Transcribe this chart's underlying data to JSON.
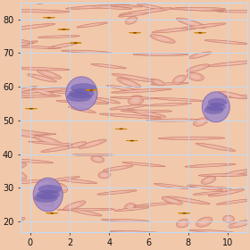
{
  "xlim": [
    -0.5,
    11.0
  ],
  "ylim": [
    17,
    85
  ],
  "xticks": [
    0,
    2,
    4,
    6,
    8,
    10
  ],
  "yticks": [
    20,
    30,
    40,
    50,
    60,
    70,
    80
  ],
  "grid_color": "#bbddff",
  "grid_alpha": 0.85,
  "bg_color": "#f2c8aa",
  "rbc_fill": "#e8a898",
  "rbc_edge": "#c07060",
  "rbc_center": "#f2c8b8",
  "wbc_fill": "#9988cc",
  "wbc_edge": "#7755aa",
  "wbc_dark": "#6655aa",
  "sunflower_points": [
    [
      0.95,
      80.5
    ],
    [
      1.7,
      77.0
    ],
    [
      2.3,
      73.0
    ],
    [
      0.05,
      53.5
    ],
    [
      3.1,
      59.0
    ],
    [
      5.3,
      76.0
    ],
    [
      8.6,
      76.0
    ],
    [
      4.6,
      47.5
    ],
    [
      5.15,
      44.0
    ],
    [
      1.1,
      22.5
    ],
    [
      7.8,
      22.5
    ]
  ],
  "petal_color": "#FFB800",
  "petal_edge": "#CC8800",
  "center_color": "#1a0a00",
  "center_ring": "#8B4513",
  "tick_label_color": "#111111",
  "tick_fontsize": 7,
  "spine_color": "#bbddff",
  "rbc_seed": 17,
  "wbc_positions": [
    [
      2.6,
      58.0,
      1.6,
      10.0,
      0.8,
      6.5
    ],
    [
      9.4,
      54.0,
      1.4,
      9.0,
      0.7,
      5.5
    ],
    [
      0.9,
      28.0,
      1.5,
      10.0,
      0.8,
      6.0
    ]
  ]
}
